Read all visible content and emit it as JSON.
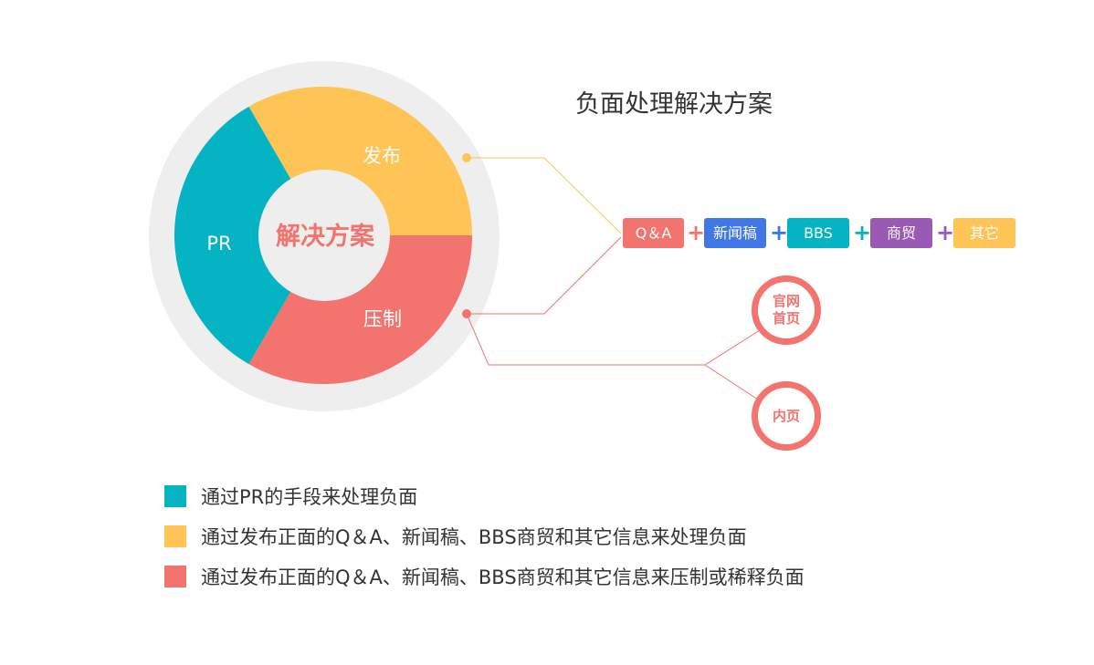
{
  "title": "负面处理解决方案",
  "center_label": "解决方案",
  "segments": [
    {
      "label": "发布",
      "color": "#fec456"
    },
    {
      "label": "PR",
      "color": "#05b4c3"
    },
    {
      "label": "压制",
      "color": "#f3736e"
    }
  ],
  "tags": [
    {
      "label": "Q＆A",
      "color": "#f3736e"
    },
    {
      "label": "新闻稿",
      "color": "#3f78e6"
    },
    {
      "label": "BBS",
      "color": "#05b4c3"
    },
    {
      "label": "商贸",
      "color": "#9b59b6"
    },
    {
      "label": "其它",
      "color": "#fec456"
    }
  ],
  "plus_sign": "+",
  "rings": [
    {
      "label": "官网首页"
    },
    {
      "label": "内页"
    }
  ],
  "legend": [
    {
      "text": "通过PR的手段来处理负面",
      "color": "#05b4c3"
    },
    {
      "text": "通过发布正面的Q＆A、新闻稿、BBS商贸和其它信息来处理负面",
      "color": "#fec456"
    },
    {
      "text": "通过发布正面的Q＆A、新闻稿、BBS商贸和其它信息来压制或稀释负面",
      "color": "#f3736e"
    }
  ]
}
